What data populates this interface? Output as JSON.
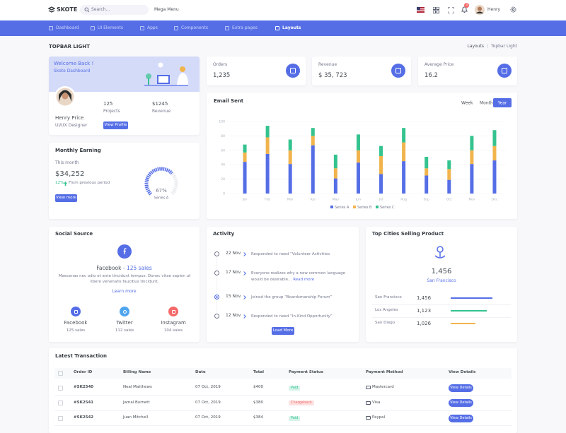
{
  "header": {
    "logo": "SKOTE",
    "search_placeholder": "Search...",
    "mega_menu": "Mega Menu",
    "notifications": "3",
    "user": "Henry"
  },
  "nav": [
    "Dashboard",
    "UI Elements",
    "Apps",
    "Components",
    "Extra pages",
    "Layouts"
  ],
  "breadcrumb": {
    "title": "TOPBAR LIGHT",
    "items": [
      "Layouts",
      "Topbar Light"
    ],
    "separator": "/"
  },
  "welcome": {
    "title": "Welcome Back !",
    "subtitle": "Skote Dashboard",
    "name": "Henry Price",
    "role": "UI/UX Designer",
    "projects": "125",
    "projects_label": "Projects",
    "revenue": "$1245",
    "revenue_label": "Revenue",
    "button": "View Profile"
  },
  "stats": [
    {
      "label": "Orders",
      "value": "1,235"
    },
    {
      "label": "Revenue",
      "value": "$ 35, 723"
    },
    {
      "label": "Average Price",
      "value": "16.2"
    }
  ],
  "earning": {
    "title": "Monthly Earning",
    "period": "This month",
    "amount": "$34,252",
    "change": "12%",
    "note": "From previous period",
    "button": "View more",
    "gauge": {
      "value": 67,
      "label": "67%",
      "name": "Series A"
    }
  },
  "email": {
    "buttons": [
      "Week",
      "Month",
      "Year"
    ]
  },
  "chart_data": {
    "type": "bar",
    "stacked": true,
    "title": "Email Sent",
    "categories": [
      "Jan",
      "Feb",
      "Mar",
      "Apr",
      "May",
      "Jun",
      "Jul",
      "Aug",
      "Sep",
      "Oct",
      "Nov",
      "Dec"
    ],
    "series": [
      {
        "name": "Series A",
        "color": "#556ee6",
        "values": [
          44,
          55,
          41,
          67,
          21,
          43,
          27,
          45,
          25,
          19,
          41,
          46
        ]
      },
      {
        "name": "Series B",
        "color": "#f1b44c",
        "values": [
          13,
          23,
          19,
          13,
          14,
          17,
          25,
          26,
          10,
          15,
          19,
          20
        ]
      },
      {
        "name": "Series C",
        "color": "#34c38f",
        "values": [
          11,
          16,
          15,
          11,
          19,
          22,
          14,
          20,
          16,
          12,
          20,
          22
        ]
      }
    ],
    "ylim": [
      0,
      100
    ],
    "yticks": [
      0,
      20,
      40,
      60,
      80,
      100
    ],
    "grid": true,
    "legend": "bottom"
  },
  "social": {
    "title": "Social Source",
    "name": "Facebook",
    "dash": " - ",
    "sales": "125 sales",
    "text": "Maecenas nec odio et ante tincidunt tempus. Donec vitae sapien ut libero venenatis faucibus tincidunt.",
    "link": "Learn more",
    "items": [
      {
        "name": "Facebook",
        "sales": "125 sales"
      },
      {
        "name": "Twitter",
        "sales": "112 sales"
      },
      {
        "name": "Instagram",
        "sales": "104 sales"
      }
    ]
  },
  "activity": {
    "title": "Activity",
    "items": [
      {
        "date": "22 Nov",
        "text": "Responded to need “Volunteer Activities"
      },
      {
        "date": "17 Nov",
        "text": "Everyone realizes why a new common language would be desirable...",
        "link": "Read more"
      },
      {
        "date": "15 Nov",
        "text": "Joined the group “Boardsmanship Forum”"
      },
      {
        "date": "12 Nov",
        "text": "Responded to need “In-Kind Opportunity”"
      }
    ],
    "button": "Load More"
  },
  "cities": {
    "title": "Top Cities Selling Product",
    "value": "1,456",
    "city": "San Francisco",
    "rows": [
      {
        "name": "San Francisco",
        "value": "1,456",
        "progress": 75
      },
      {
        "name": "Los Angeles",
        "value": "1,123",
        "progress": 65
      },
      {
        "name": "San Diego",
        "value": "1,026",
        "progress": 45
      }
    ]
  },
  "transactions": {
    "title": "Latest Transaction",
    "headers": [
      "Order ID",
      "Billing Name",
      "Date",
      "Total",
      "Payment Status",
      "Payment Method",
      "View Details"
    ],
    "rows": [
      [
        "#SK2540",
        "Neal Matthews",
        "07 Oct, 2019",
        "$400",
        "Paid",
        "Mastercard",
        "View Details"
      ],
      [
        "#SK2541",
        "Jamal Burnett",
        "07 Oct, 2019",
        "$380",
        "Chargeback",
        "Visa",
        "View Details"
      ],
      [
        "#SK2542",
        "Juan Mitchell",
        "07 Oct, 2019",
        "$384",
        "Paid",
        "Paypal",
        "View Details"
      ]
    ]
  }
}
